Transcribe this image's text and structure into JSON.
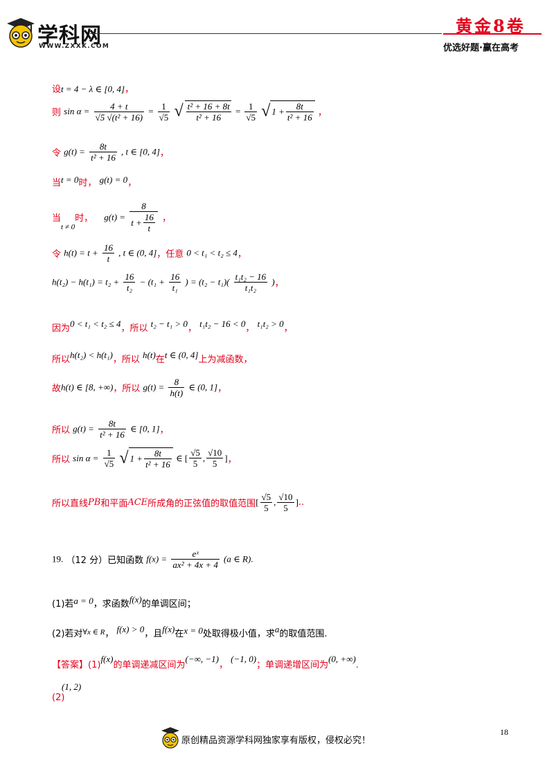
{
  "header": {
    "logo_text": "学科网",
    "logo_url": "WWW.ZXXK.COM",
    "brand_title": "黄金8卷",
    "brand_slogan": "优选好题·赢在高考"
  },
  "lines": {
    "l1_label": "设",
    "l1_math": "t = 4 − λ ∈ [0, 4]",
    "l1_end": "，",
    "l2_label": "则",
    "l2_lhs": "sin α =",
    "l2_f1_num": "4 + t",
    "l2_f1_den": "√5 √(t² + 16)",
    "l2_eq": "=",
    "l2_f2_num": "1",
    "l2_f2_den": "√5",
    "l2_f3_num": "t² + 16 + 8t",
    "l2_f3_den": "t² + 16",
    "l2_f4_num": "1",
    "l2_f4_den": "√5",
    "l2_one": "1 +",
    "l2_f5_num": "8t",
    "l2_f5_den": "t² + 16",
    "l2_end": "，",
    "l3_label": "令",
    "l3_lhs": "g(t) =",
    "l3_num": "8t",
    "l3_den": "t² + 16",
    "l3_rest": ", t ∈ [0, 4]",
    "l3_end": "，",
    "l4_label": "当",
    "l4_cond": "t = 0",
    "l4_time": "时，",
    "l4_math": "g(t) = 0",
    "l4_end": "，",
    "l5_label": "当",
    "l5_cond": "t ≠ 0",
    "l5_time": "时，",
    "l5_lhs": "g(t) =",
    "l5_num": "8",
    "l5_den_a": "t +",
    "l5_den_num": "16",
    "l5_den_den": "t",
    "l5_end": "，",
    "l6_label": "令",
    "l6_lhs": "h(t) = t +",
    "l6_num": "16",
    "l6_den": "t",
    "l6_rest": ", t ∈ (0, 4]",
    "l6_mid": "，任意",
    "l6_cond": "0 < t₁ < t₂ ≤ 4",
    "l6_end": "，",
    "l7_a": "h(t₂) − h(t₁) = t₂ +",
    "l7_n1": "16",
    "l7_d1": "t₂",
    "l7_b": "− (t₁ +",
    "l7_n2": "16",
    "l7_d2": "t₁",
    "l7_c": ") = (t₂ − t₁)(",
    "l7_n3": "t₁t₂ − 16",
    "l7_d3": "t₁t₂",
    "l7_d": ")",
    "l7_end": "，",
    "l8_label": "因为",
    "l8_m1": "0 < t₁ < t₂ ≤ 4",
    "l8_t1": "，所以",
    "l8_m2": "t₂ − t₁ > 0",
    "l8_sep": "，",
    "l8_m3": "t₁t₂ − 16 < 0",
    "l8_m4": "t₁t₂ > 0",
    "l8_end": "，",
    "l9_label": "所以",
    "l9_m1": "h(t₂) < h(t₁)",
    "l9_t1": "，所以",
    "l9_m2": "h(t)",
    "l9_t2": "在",
    "l9_m3": "t ∈ (0, 4]",
    "l9_t3": "上为减函数，",
    "l10_label": "故",
    "l10_m1": "h(t) ∈ [8, +∞)",
    "l10_t1": "，所以",
    "l10_lhs": "g(t) =",
    "l10_num": "8",
    "l10_den": "h(t)",
    "l10_rest": "∈ (0, 1]",
    "l10_end": "，",
    "l11_label": "所以",
    "l11_lhs": "g(t) =",
    "l11_num": "8t",
    "l11_den": "t² + 16",
    "l11_rest": "∈ [0, 1]",
    "l11_end": "，",
    "l12_label": "所以",
    "l12_lhs": "sin α =",
    "l12_f1_num": "1",
    "l12_f1_den": "√5",
    "l12_one": "1 +",
    "l12_f2_num": "8t",
    "l12_f2_den": "t² + 16",
    "l12_in": "∈ [",
    "l12_f3_num": "√5",
    "l12_f3_den": "5",
    "l12_comma": ",",
    "l12_f4_num": "√10",
    "l12_f4_den": "5",
    "l12_close": "]",
    "l12_end": "，",
    "l13_text": "所以直线",
    "l13_pb": "PB",
    "l13_t2": "和平面",
    "l13_ace": "ACE",
    "l13_t3": "所成角的正弦值的取值范围",
    "l13_open": "[",
    "l13_f1_num": "√5",
    "l13_f1_den": "5",
    "l13_comma": ",",
    "l13_f2_num": "√10",
    "l13_f2_den": "5",
    "l13_close": "]",
    "l13_end": ".."
  },
  "problem": {
    "number": "19.",
    "score": "（12 分）已知函数",
    "f_lhs": "f(x) =",
    "f_num": "eˣ",
    "f_den": "ax² + 4x + 4",
    "f_rest": "(a ∈ R)",
    "f_end": ".",
    "p1_a": "(1)若",
    "p1_m": "a = 0",
    "p1_b": "，求函数",
    "p1_f": "f(x)",
    "p1_c": "的单调区间；",
    "p2_a": "(2)若对",
    "p2_m1": "∀x ∈ R",
    "p2_b": "，",
    "p2_m2": "f(x) > 0",
    "p2_c": "，且",
    "p2_m3": "f(x)",
    "p2_d": "在",
    "p2_m4": "x = 0",
    "p2_e": "处取得极小值，求",
    "p2_m5": "a",
    "p2_f": "的取值范围."
  },
  "answer": {
    "tag": "【答案】",
    "a1_pre": "(1)",
    "a1_f": "f(x)",
    "a1_t1": "的单调递减区间为",
    "a1_m1": "(−∞, −1)",
    "a1_sep": "，",
    "a1_m2": "(−1, 0)",
    "a1_t2": "；单调递增区间为",
    "a1_m3": "(0, +∞)",
    "a1_end": ".",
    "a2_pre": "(2)",
    "a2_m": "(1, 2)"
  },
  "footer": {
    "page_number": "18",
    "notice": "原创精品资源学科网独家享有版权，侵权必究！"
  },
  "colors": {
    "accent_red": "#e3001b",
    "logo_yellow": "#f6c300",
    "text": "#000000"
  }
}
